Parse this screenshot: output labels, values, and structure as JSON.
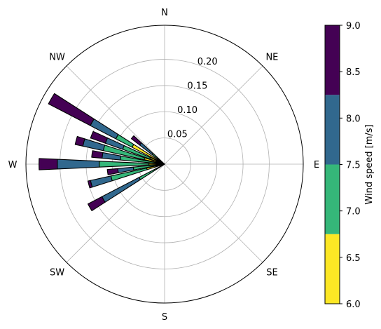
{
  "chart_data": {
    "type": "windrose",
    "title": "",
    "radial_ticks": [
      0.05,
      0.1,
      0.15,
      0.2
    ],
    "radial_tick_labels": [
      "0.05",
      "0.10",
      "0.15",
      "0.20"
    ],
    "radial_max": 0.265,
    "direction_labels": [
      "N",
      "NE",
      "E",
      "SE",
      "S",
      "SW",
      "W",
      "NW"
    ],
    "colorbar": {
      "label": "Wind speed [m/s]",
      "vmin": 6.0,
      "vmax": 9.0,
      "tick_values": [
        6.0,
        6.5,
        7.0,
        7.5,
        8.0,
        8.5,
        9.0
      ],
      "tick_labels": [
        "6.0",
        "6.5",
        "7.0",
        "7.5",
        "8.0",
        "8.5",
        "9.0"
      ],
      "bins": [
        {
          "from": 6.0,
          "to": 6.75,
          "color": "#fde725"
        },
        {
          "from": 6.75,
          "to": 7.5,
          "color": "#35b779"
        },
        {
          "from": 7.5,
          "to": 8.25,
          "color": "#31688e"
        },
        {
          "from": 8.25,
          "to": 9.0,
          "color": "#440154"
        }
      ]
    },
    "sectors": [
      {
        "direction_deg": 240,
        "bin_edges": [
          0.0,
          0.005,
          0.055,
          0.135,
          0.165
        ]
      },
      {
        "direction_deg": 255,
        "bin_edges": [
          0.0,
          0.035,
          0.105,
          0.145,
          0.15
        ]
      },
      {
        "direction_deg": 262,
        "bin_edges": [
          0.0,
          0.015,
          0.06,
          0.09,
          0.11
        ]
      },
      {
        "direction_deg": 270,
        "bin_edges": [
          0.0,
          0.03,
          0.125,
          0.205,
          0.24
        ]
      },
      {
        "direction_deg": 278,
        "bin_edges": [
          0.0,
          0.018,
          0.085,
          0.12,
          0.14
        ]
      },
      {
        "direction_deg": 285,
        "bin_edges": [
          0.0,
          0.04,
          0.12,
          0.16,
          0.175
        ]
      },
      {
        "direction_deg": 292,
        "bin_edges": [
          0.0,
          0.03,
          0.085,
          0.12,
          0.15
        ]
      },
      {
        "direction_deg": 300,
        "bin_edges": [
          0.0,
          0.07,
          0.105,
          0.16,
          0.25
        ]
      },
      {
        "direction_deg": 310,
        "bin_edges": [
          0.0,
          0.01,
          0.03,
          0.06,
          0.08
        ]
      }
    ]
  }
}
